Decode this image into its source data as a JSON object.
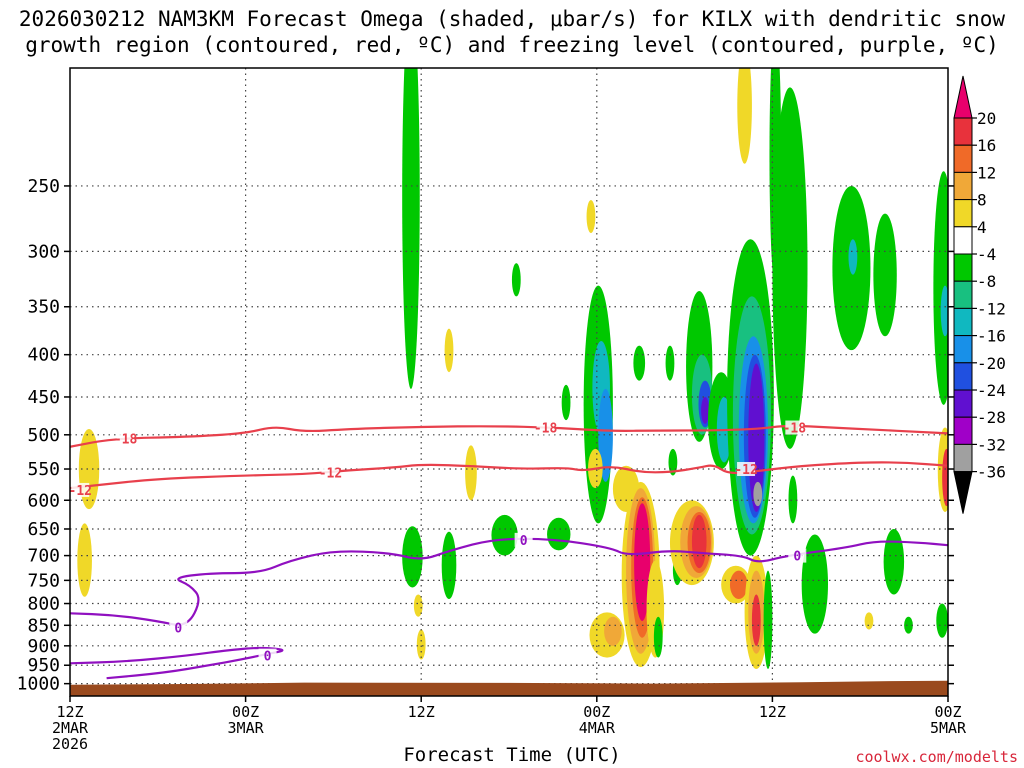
{
  "title": {
    "line1": "2026030212 NAM3KM Forecast Omega (shaded, μbar/s) for KILX with dendritic snow",
    "line2": "growth region (contoured, red, ºC) and freezing level (contoured, purple, ºC)"
  },
  "credit": "coolwx.com/modelts",
  "chart_data": {
    "type": "heatmap",
    "title": "2026030212 NAM3KM Forecast Omega (shaded, μbar/s) for KILX with dendritic snow growth region (contoured, red, ºC) and freezing level (contoured, purple, ºC)",
    "xlabel": "Forecast Time (UTC)",
    "ylabel": "",
    "x_range_hours": [
      0,
      60
    ],
    "x_ticks": [
      {
        "hour": 0,
        "lines": [
          "12Z",
          "2MAR",
          "2026"
        ]
      },
      {
        "hour": 12,
        "lines": [
          "00Z",
          "3MAR"
        ]
      },
      {
        "hour": 24,
        "lines": [
          "12Z"
        ]
      },
      {
        "hour": 36,
        "lines": [
          "00Z",
          "4MAR"
        ]
      },
      {
        "hour": 48,
        "lines": [
          "12Z"
        ]
      },
      {
        "hour": 60,
        "lines": [
          "00Z",
          "5MAR"
        ]
      }
    ],
    "y_axis": "pressure_hPa",
    "y_ticks": [
      250,
      300,
      350,
      400,
      450,
      500,
      550,
      600,
      650,
      700,
      750,
      800,
      850,
      900,
      950,
      1000
    ],
    "grid": true,
    "colorbar": {
      "labels": [
        20,
        16,
        12,
        8,
        4,
        -4,
        -8,
        -12,
        -16,
        -20,
        -24,
        -28,
        -32,
        -36
      ],
      "bins": [
        {
          "range": [
            16,
            20
          ],
          "color": "#e8323c"
        },
        {
          "range": [
            12,
            16
          ],
          "color": "#f06a28"
        },
        {
          "range": [
            8,
            12
          ],
          "color": "#f0a838"
        },
        {
          "range": [
            4,
            8
          ],
          "color": "#f0d828"
        },
        {
          "range": [
            -4,
            4
          ],
          "color": "#ffffff"
        },
        {
          "range": [
            -8,
            -4
          ],
          "color": "#00c800"
        },
        {
          "range": [
            -12,
            -8
          ],
          "color": "#18c080"
        },
        {
          "range": [
            -16,
            -12
          ],
          "color": "#10b8c0"
        },
        {
          "range": [
            -20,
            -16
          ],
          "color": "#1890e8"
        },
        {
          "range": [
            -24,
            -20
          ],
          "color": "#2050e0"
        },
        {
          "range": [
            -28,
            -24
          ],
          "color": "#6010d0"
        },
        {
          "range": [
            -32,
            -28
          ],
          "color": "#a000c8"
        },
        {
          "range": [
            -36,
            -32
          ],
          "color": "#a0a0a0"
        }
      ],
      "over_color": "#e8006c",
      "under_color": "#000000"
    },
    "omega_blobs": [
      {
        "hour": 1.3,
        "p_top": 492,
        "p_bot": 615,
        "half_width_h": 0.7,
        "color": "#f0d828"
      },
      {
        "hour": 1.0,
        "p_top": 640,
        "p_bot": 785,
        "half_width_h": 0.5,
        "color": "#f0d828"
      },
      {
        "hour": 23.3,
        "p_top": 150,
        "p_bot": 440,
        "half_width_h": 0.6,
        "color": "#00c800"
      },
      {
        "hour": 23.4,
        "p_top": 645,
        "p_bot": 765,
        "half_width_h": 0.7,
        "color": "#00c800"
      },
      {
        "hour": 23.8,
        "p_top": 780,
        "p_bot": 830,
        "half_width_h": 0.3,
        "color": "#f0d828"
      },
      {
        "hour": 24.0,
        "p_top": 860,
        "p_bot": 935,
        "half_width_h": 0.3,
        "color": "#f0d828"
      },
      {
        "hour": 25.9,
        "p_top": 655,
        "p_bot": 790,
        "half_width_h": 0.5,
        "color": "#00c800"
      },
      {
        "hour": 25.9,
        "p_top": 372,
        "p_bot": 420,
        "half_width_h": 0.3,
        "color": "#f0d828"
      },
      {
        "hour": 27.4,
        "p_top": 515,
        "p_bot": 600,
        "half_width_h": 0.4,
        "color": "#f0d828"
      },
      {
        "hour": 29.7,
        "p_top": 625,
        "p_bot": 700,
        "half_width_h": 0.9,
        "color": "#00c800"
      },
      {
        "hour": 30.5,
        "p_top": 310,
        "p_bot": 340,
        "half_width_h": 0.3,
        "color": "#00c800"
      },
      {
        "hour": 33.4,
        "p_top": 630,
        "p_bot": 690,
        "half_width_h": 0.8,
        "color": "#00c800"
      },
      {
        "hour": 33.9,
        "p_top": 435,
        "p_bot": 480,
        "half_width_h": 0.3,
        "color": "#00c800"
      },
      {
        "hour": 35.6,
        "p_top": 260,
        "p_bot": 285,
        "half_width_h": 0.3,
        "color": "#f0d828"
      },
      {
        "hour": 36.1,
        "p_top": 330,
        "p_bot": 640,
        "half_width_h": 1.0,
        "color": "#00c800"
      },
      {
        "hour": 36.3,
        "p_top": 385,
        "p_bot": 500,
        "half_width_h": 0.6,
        "color": "#10b8c0"
      },
      {
        "hour": 36.6,
        "p_top": 440,
        "p_bot": 570,
        "half_width_h": 0.5,
        "color": "#1890e8"
      },
      {
        "hour": 35.9,
        "p_top": 520,
        "p_bot": 580,
        "half_width_h": 0.5,
        "color": "#f0d828"
      },
      {
        "hour": 38.0,
        "p_top": 545,
        "p_bot": 620,
        "half_width_h": 0.9,
        "color": "#f0d828"
      },
      {
        "hour": 36.7,
        "p_top": 820,
        "p_bot": 930,
        "half_width_h": 1.2,
        "color": "#f0d828"
      },
      {
        "hour": 37.1,
        "p_top": 830,
        "p_bot": 900,
        "half_width_h": 0.6,
        "color": "#f0a838"
      },
      {
        "hour": 38.9,
        "p_top": 390,
        "p_bot": 430,
        "half_width_h": 0.4,
        "color": "#00c800"
      },
      {
        "hour": 39.0,
        "p_top": 570,
        "p_bot": 955,
        "half_width_h": 1.3,
        "color": "#f0d828"
      },
      {
        "hour": 39.0,
        "p_top": 580,
        "p_bot": 920,
        "half_width_h": 1.0,
        "color": "#f0a838"
      },
      {
        "hour": 39.1,
        "p_top": 595,
        "p_bot": 880,
        "half_width_h": 0.75,
        "color": "#f06a28"
      },
      {
        "hour": 39.1,
        "p_top": 605,
        "p_bot": 840,
        "half_width_h": 0.55,
        "color": "#e8006c"
      },
      {
        "hour": 40.0,
        "p_top": 710,
        "p_bot": 930,
        "half_width_h": 0.6,
        "color": "#f0d828"
      },
      {
        "hour": 40.2,
        "p_top": 830,
        "p_bot": 930,
        "half_width_h": 0.3,
        "color": "#00c800"
      },
      {
        "hour": 41.0,
        "p_top": 390,
        "p_bot": 430,
        "half_width_h": 0.3,
        "color": "#00c800"
      },
      {
        "hour": 41.2,
        "p_top": 520,
        "p_bot": 560,
        "half_width_h": 0.3,
        "color": "#00c800"
      },
      {
        "hour": 41.5,
        "p_top": 700,
        "p_bot": 760,
        "half_width_h": 0.3,
        "color": "#00c800"
      },
      {
        "hour": 42.5,
        "p_top": 600,
        "p_bot": 760,
        "half_width_h": 1.5,
        "color": "#f0d828"
      },
      {
        "hour": 42.8,
        "p_top": 610,
        "p_bot": 745,
        "half_width_h": 1.1,
        "color": "#f0a838"
      },
      {
        "hour": 43.0,
        "p_top": 620,
        "p_bot": 735,
        "half_width_h": 0.8,
        "color": "#f06a28"
      },
      {
        "hour": 43.0,
        "p_top": 625,
        "p_bot": 725,
        "half_width_h": 0.5,
        "color": "#e8323c"
      },
      {
        "hour": 43.0,
        "p_top": 335,
        "p_bot": 510,
        "half_width_h": 0.9,
        "color": "#00c800"
      },
      {
        "hour": 43.2,
        "p_top": 400,
        "p_bot": 500,
        "half_width_h": 0.7,
        "color": "#18c080"
      },
      {
        "hour": 43.4,
        "p_top": 430,
        "p_bot": 490,
        "half_width_h": 0.45,
        "color": "#2050e0"
      },
      {
        "hour": 43.4,
        "p_top": 450,
        "p_bot": 485,
        "half_width_h": 0.25,
        "color": "#6010d0"
      },
      {
        "hour": 44.5,
        "p_top": 420,
        "p_bot": 550,
        "half_width_h": 0.9,
        "color": "#00c800"
      },
      {
        "hour": 44.7,
        "p_top": 450,
        "p_bot": 540,
        "half_width_h": 0.5,
        "color": "#10b8c0"
      },
      {
        "hour": 45.5,
        "p_top": 720,
        "p_bot": 800,
        "half_width_h": 1.0,
        "color": "#f0d828"
      },
      {
        "hour": 45.7,
        "p_top": 730,
        "p_bot": 790,
        "half_width_h": 0.6,
        "color": "#f06a28"
      },
      {
        "hour": 46.1,
        "p_top": 170,
        "p_bot": 235,
        "half_width_h": 0.5,
        "color": "#f0d828"
      },
      {
        "hour": 46.5,
        "p_top": 290,
        "p_bot": 700,
        "half_width_h": 1.6,
        "color": "#00c800"
      },
      {
        "hour": 46.6,
        "p_top": 340,
        "p_bot": 660,
        "half_width_h": 1.3,
        "color": "#18c080"
      },
      {
        "hour": 46.7,
        "p_top": 380,
        "p_bot": 640,
        "half_width_h": 1.0,
        "color": "#1890e8"
      },
      {
        "hour": 46.8,
        "p_top": 400,
        "p_bot": 630,
        "half_width_h": 0.75,
        "color": "#2050e0"
      },
      {
        "hour": 46.9,
        "p_top": 410,
        "p_bot": 620,
        "half_width_h": 0.55,
        "color": "#6010d0"
      },
      {
        "hour": 47.0,
        "p_top": 570,
        "p_bot": 610,
        "half_width_h": 0.3,
        "color": "#a0a0a0"
      },
      {
        "hour": 46.9,
        "p_top": 700,
        "p_bot": 960,
        "half_width_h": 0.8,
        "color": "#f0d828"
      },
      {
        "hour": 46.9,
        "p_top": 730,
        "p_bot": 920,
        "half_width_h": 0.55,
        "color": "#f0a838"
      },
      {
        "hour": 46.9,
        "p_top": 780,
        "p_bot": 900,
        "half_width_h": 0.3,
        "color": "#e8323c"
      },
      {
        "hour": 47.7,
        "p_top": 730,
        "p_bot": 960,
        "half_width_h": 0.3,
        "color": "#00c800"
      },
      {
        "hour": 48.2,
        "p_top": 160,
        "p_bot": 330,
        "half_width_h": 0.4,
        "color": "#00c800"
      },
      {
        "hour": 49.2,
        "p_top": 190,
        "p_bot": 520,
        "half_width_h": 1.2,
        "color": "#00c800"
      },
      {
        "hour": 49.4,
        "p_top": 560,
        "p_bot": 640,
        "half_width_h": 0.3,
        "color": "#00c800"
      },
      {
        "hour": 50.9,
        "p_top": 660,
        "p_bot": 870,
        "half_width_h": 0.9,
        "color": "#00c800"
      },
      {
        "hour": 53.4,
        "p_top": 250,
        "p_bot": 395,
        "half_width_h": 1.3,
        "color": "#00c800"
      },
      {
        "hour": 53.5,
        "p_top": 290,
        "p_bot": 320,
        "half_width_h": 0.3,
        "color": "#10b8c0"
      },
      {
        "hour": 55.7,
        "p_top": 270,
        "p_bot": 380,
        "half_width_h": 0.8,
        "color": "#00c800"
      },
      {
        "hour": 54.6,
        "p_top": 820,
        "p_bot": 860,
        "half_width_h": 0.3,
        "color": "#f0d828"
      },
      {
        "hour": 56.3,
        "p_top": 650,
        "p_bot": 780,
        "half_width_h": 0.7,
        "color": "#00c800"
      },
      {
        "hour": 57.3,
        "p_top": 830,
        "p_bot": 870,
        "half_width_h": 0.3,
        "color": "#00c800"
      },
      {
        "hour": 59.7,
        "p_top": 240,
        "p_bot": 460,
        "half_width_h": 0.7,
        "color": "#00c800"
      },
      {
        "hour": 59.8,
        "p_top": 330,
        "p_bot": 380,
        "half_width_h": 0.3,
        "color": "#10b8c0"
      },
      {
        "hour": 59.8,
        "p_top": 490,
        "p_bot": 620,
        "half_width_h": 0.5,
        "color": "#f0d828"
      },
      {
        "hour": 59.9,
        "p_top": 520,
        "p_bot": 610,
        "half_width_h": 0.3,
        "color": "#e8323c"
      },
      {
        "hour": 59.6,
        "p_top": 800,
        "p_bot": 880,
        "half_width_h": 0.4,
        "color": "#00c800"
      }
    ],
    "isotherms_red": [
      {
        "label": "-18",
        "color": "#e8404c",
        "label_at": [
          {
            "hour": 3.8,
            "p": 505
          },
          {
            "hour": 32.5,
            "p": 490
          },
          {
            "hour": 49.5,
            "p": 490
          }
        ],
        "points": [
          [
            0,
            517
          ],
          [
            3,
            505
          ],
          [
            8,
            503
          ],
          [
            12,
            498
          ],
          [
            14,
            488
          ],
          [
            16,
            496
          ],
          [
            19,
            492
          ],
          [
            24,
            489
          ],
          [
            29,
            488
          ],
          [
            33,
            490
          ],
          [
            37,
            495
          ],
          [
            40,
            494
          ],
          [
            44,
            494
          ],
          [
            47,
            492
          ],
          [
            49,
            487
          ],
          [
            52,
            490
          ],
          [
            55,
            493
          ],
          [
            58,
            496
          ],
          [
            60,
            498
          ]
        ]
      },
      {
        "label": "-12",
        "color": "#e8404c",
        "label_at": [
          {
            "hour": 0.7,
            "p": 583
          },
          {
            "hour": 17.8,
            "p": 555
          },
          {
            "hour": 46.2,
            "p": 550
          }
        ],
        "points": [
          [
            0,
            580
          ],
          [
            2,
            575
          ],
          [
            6,
            565
          ],
          [
            12,
            560
          ],
          [
            16,
            558
          ],
          [
            19,
            552
          ],
          [
            22,
            548
          ],
          [
            24,
            543
          ],
          [
            27,
            545
          ],
          [
            31,
            550
          ],
          [
            34,
            548
          ],
          [
            35,
            553
          ],
          [
            37,
            545
          ],
          [
            39,
            555
          ],
          [
            41,
            555
          ],
          [
            43,
            548
          ],
          [
            44,
            543
          ],
          [
            45,
            558
          ],
          [
            47,
            553
          ],
          [
            50,
            545
          ],
          [
            54,
            540
          ],
          [
            57,
            540
          ],
          [
            60,
            545
          ]
        ]
      }
    ],
    "isotherms_purple": [
      {
        "label": "0",
        "color": "#9010c0",
        "label_at": [
          {
            "hour": 7.4,
            "p": 855
          },
          {
            "hour": 31.0,
            "p": 670
          },
          {
            "hour": 49.7,
            "p": 700
          }
        ],
        "points": [
          [
            0,
            822
          ],
          [
            3,
            826
          ],
          [
            6,
            840
          ],
          [
            8,
            855
          ],
          [
            9,
            790
          ],
          [
            8.2,
            760
          ],
          [
            7.0,
            745
          ],
          [
            9.5,
            735
          ],
          [
            13,
            735
          ],
          [
            15,
            710
          ],
          [
            18,
            690
          ],
          [
            22,
            695
          ],
          [
            24,
            710
          ],
          [
            26,
            690
          ],
          [
            29,
            668
          ],
          [
            33,
            668
          ],
          [
            37,
            685
          ],
          [
            38,
            700
          ],
          [
            41,
            690
          ],
          [
            43,
            695
          ],
          [
            46,
            700
          ],
          [
            47,
            715
          ],
          [
            49,
            700
          ],
          [
            53,
            685
          ],
          [
            55,
            672
          ],
          [
            58,
            675
          ],
          [
            60,
            680
          ]
        ]
      },
      {
        "label": "0",
        "color": "#9010c0",
        "label_at": [
          {
            "hour": 13.5,
            "p": 925
          }
        ],
        "points": [
          [
            0,
            945
          ],
          [
            4,
            940
          ],
          [
            8,
            925
          ],
          [
            11,
            910
          ],
          [
            13,
            904
          ],
          [
            14.9,
            910
          ],
          [
            13.6,
            920
          ],
          [
            11.7,
            935
          ],
          [
            9.5,
            950
          ],
          [
            6.5,
            970
          ],
          [
            2.5,
            985
          ]
        ]
      }
    ],
    "ground_pressure": [
      [
        0,
        1003
      ],
      [
        8,
        1001
      ],
      [
        16,
        997
      ],
      [
        30,
        998
      ],
      [
        40,
        1000
      ],
      [
        50,
        996
      ],
      [
        56,
        993
      ],
      [
        60,
        992
      ]
    ]
  },
  "axes": {
    "xlabel": "Forecast Time (UTC)"
  }
}
